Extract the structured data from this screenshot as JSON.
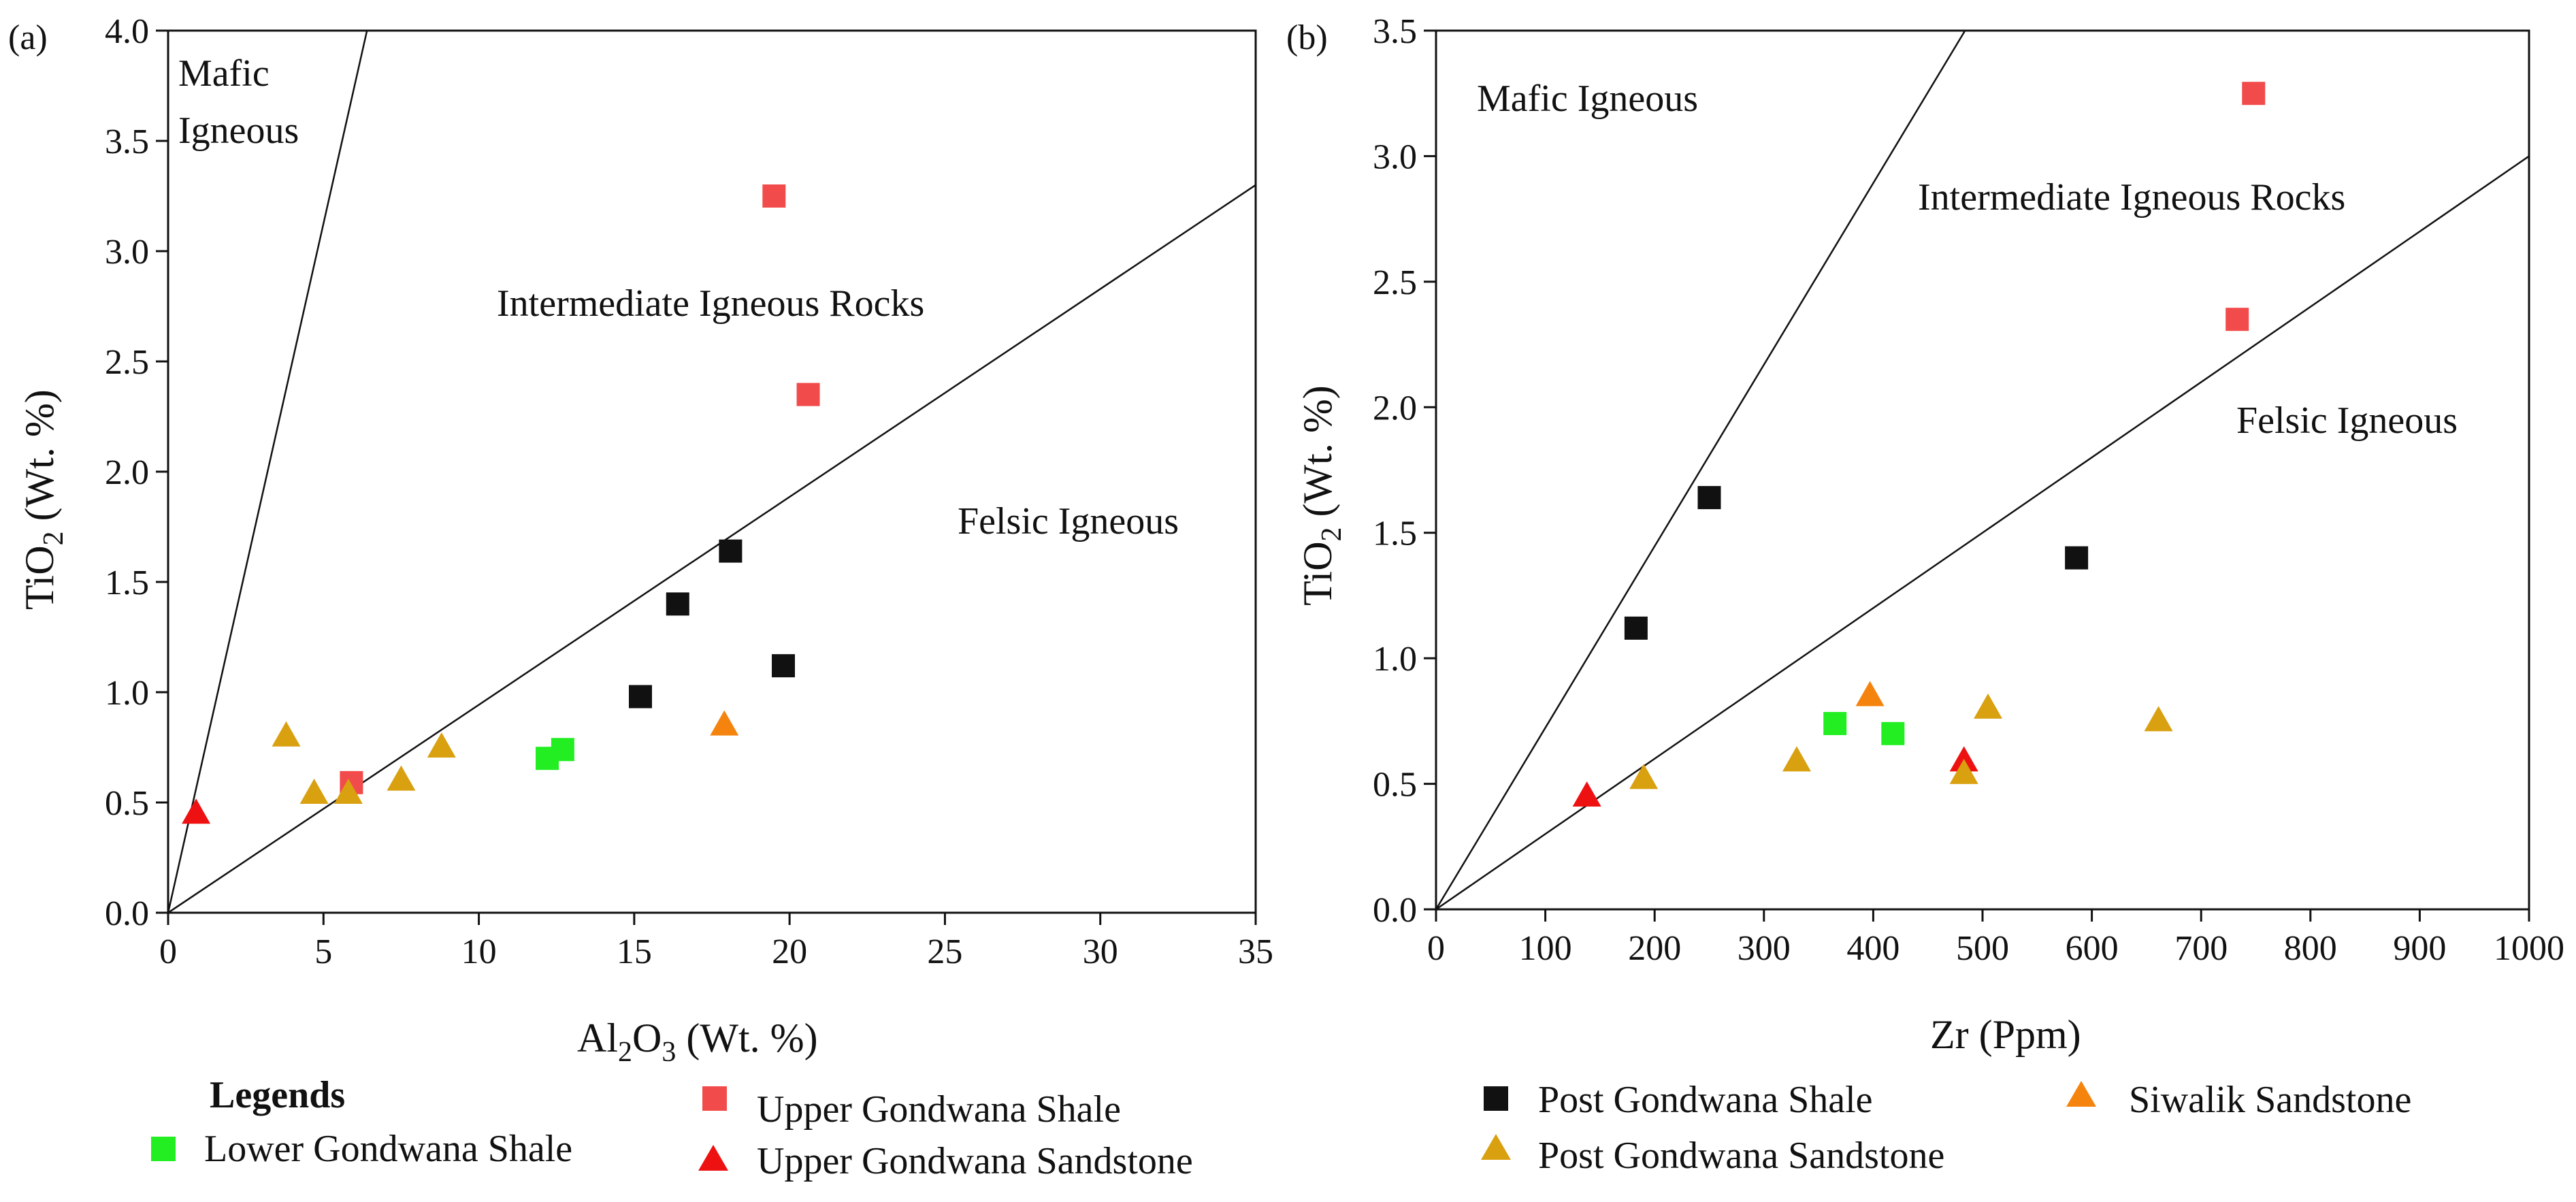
{
  "figure": {
    "legend": {
      "heading": "Legends",
      "entries": [
        {
          "key": "lgs",
          "label": "Lower Gondwana Shale"
        },
        {
          "key": "ugsh",
          "label": "Upper Gondwana Shale"
        },
        {
          "key": "ugss",
          "label": "Upper Gondwana Sandstone"
        },
        {
          "key": "pgsh",
          "label": "Post Gondwana Shale"
        },
        {
          "key": "pgss",
          "label": "Post Gondwana Sandstone"
        },
        {
          "key": "sws",
          "label": "Siwalik Sandstone"
        }
      ]
    }
  },
  "styles": {
    "lgs": {
      "marker": "square",
      "color": "#22ee22"
    },
    "ugsh": {
      "marker": "square",
      "color": "#f24b4b"
    },
    "ugss": {
      "marker": "triangle",
      "color": "#ee1111"
    },
    "pgsh": {
      "marker": "square",
      "color": "#111111"
    },
    "pgss": {
      "marker": "triangle",
      "color": "#d9a010"
    },
    "sws": {
      "marker": "triangle",
      "color": "#f5840f"
    }
  },
  "chart_data": [
    {
      "type": "scatter",
      "panel_label": "(a)",
      "title": "",
      "xlabel": "Al2O3 (Wt. %)",
      "ylabel": "TiO2 (Wt. %)",
      "xlabel_parts": {
        "pre": "Al",
        "sub1": "2",
        "mid": "O",
        "sub2": "3",
        "post": " (Wt. %)"
      },
      "ylabel_parts": {
        "pre": "TiO",
        "sub": "2",
        "post": " (Wt. %)"
      },
      "xlim": [
        0,
        35
      ],
      "ylim": [
        0,
        4
      ],
      "xticks": [
        0,
        5,
        10,
        15,
        20,
        25,
        30,
        35
      ],
      "yticks": [
        "0.0",
        "0.5",
        "1.0",
        "1.5",
        "2.0",
        "2.5",
        "3.0",
        "3.5",
        "4.0"
      ],
      "boundary_lines": [
        {
          "name": "mafic-intermediate",
          "from": [
            0,
            0
          ],
          "to": [
            6.4,
            4.0
          ]
        },
        {
          "name": "intermediate-felsic",
          "from": [
            0,
            0
          ],
          "to": [
            35,
            3.3
          ]
        }
      ],
      "region_labels": [
        {
          "lines": [
            "Mafic",
            "Igneous"
          ]
        },
        {
          "lines": [
            "Intermediate Igneous Rocks"
          ]
        },
        {
          "lines": [
            "Felsic Igneous"
          ]
        }
      ],
      "series": [
        {
          "key": "lgs",
          "points": [
            [
              12.2,
              0.7
            ],
            [
              12.7,
              0.74
            ]
          ]
        },
        {
          "key": "ugsh",
          "points": [
            [
              19.5,
              3.25
            ],
            [
              20.6,
              2.35
            ],
            [
              5.9,
              0.59
            ]
          ]
        },
        {
          "key": "ugss",
          "points": [
            [
              0.9,
              0.45
            ]
          ]
        },
        {
          "key": "pgsh",
          "points": [
            [
              16.4,
              1.4
            ],
            [
              18.1,
              1.64
            ],
            [
              15.2,
              0.98
            ],
            [
              19.8,
              1.12
            ]
          ]
        },
        {
          "key": "pgss",
          "points": [
            [
              3.8,
              0.8
            ],
            [
              4.7,
              0.54
            ],
            [
              5.8,
              0.54
            ],
            [
              7.5,
              0.6
            ],
            [
              8.8,
              0.75
            ]
          ]
        },
        {
          "key": "sws",
          "points": [
            [
              17.9,
              0.85
            ]
          ]
        }
      ]
    },
    {
      "type": "scatter",
      "panel_label": "(b)",
      "title": "",
      "xlabel": "Zr (Ppm)",
      "ylabel": "TiO2 (Wt. %)",
      "ylabel_parts": {
        "pre": "TiO",
        "sub": "2",
        "post": " (Wt. %)"
      },
      "xlim": [
        0,
        1000
      ],
      "ylim": [
        0,
        3.5
      ],
      "xticks": [
        0,
        100,
        200,
        300,
        400,
        500,
        600,
        700,
        800,
        900,
        1000
      ],
      "yticks": [
        "0.0",
        "0.5",
        "1.0",
        "1.5",
        "2.0",
        "2.5",
        "3.0",
        "3.5"
      ],
      "boundary_lines": [
        {
          "name": "mafic-intermediate",
          "from": [
            0,
            0
          ],
          "to": [
            484,
            3.5
          ]
        },
        {
          "name": "intermediate-felsic",
          "from": [
            0,
            0
          ],
          "to": [
            1000,
            3.0
          ]
        }
      ],
      "region_labels": [
        {
          "lines": [
            "Mafic Igneous"
          ]
        },
        {
          "lines": [
            "Intermediate Igneous Rocks"
          ]
        },
        {
          "lines": [
            "Felsic Igneous"
          ]
        }
      ],
      "series": [
        {
          "key": "lgs",
          "points": [
            [
              365,
              0.74
            ],
            [
              418,
              0.7
            ]
          ]
        },
        {
          "key": "ugsh",
          "points": [
            [
              748,
              3.25
            ],
            [
              733,
              2.35
            ]
          ]
        },
        {
          "key": "ugss",
          "points": [
            [
              138,
              0.45
            ],
            [
              483,
              0.59
            ]
          ]
        },
        {
          "key": "pgsh",
          "points": [
            [
              183,
              1.12
            ],
            [
              250,
              1.64
            ],
            [
              586,
              1.4
            ]
          ]
        },
        {
          "key": "pgss",
          "points": [
            [
              330,
              0.59
            ],
            [
              483,
              0.54
            ],
            [
              505,
              0.8
            ],
            [
              661,
              0.75
            ],
            [
              190,
              0.52
            ]
          ]
        },
        {
          "key": "sws",
          "points": [
            [
              397,
              0.85
            ]
          ]
        }
      ]
    }
  ]
}
